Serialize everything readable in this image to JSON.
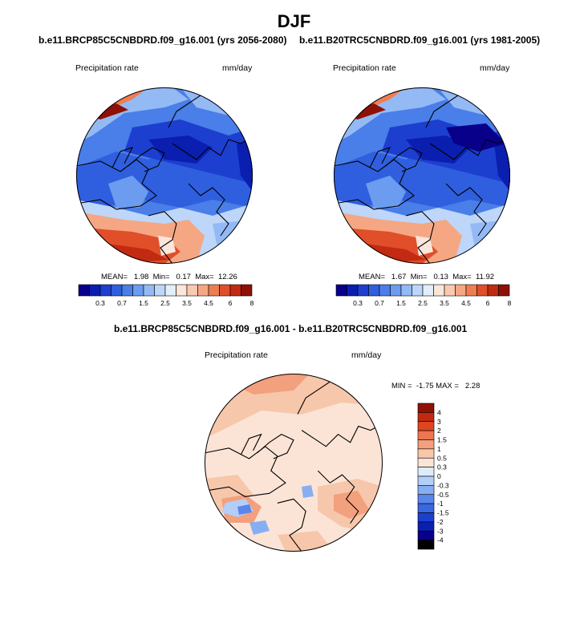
{
  "title": "DJF",
  "colors": {
    "bluescale": [
      "#08008a",
      "#0a1fb0",
      "#1c3fd0",
      "#2f5fde",
      "#4a7ee8",
      "#6c9cef",
      "#94baf5",
      "#bdd6f9",
      "#e3eefb",
      "#fbe6da",
      "#f8c9b0",
      "#f5a783",
      "#ef7d52",
      "#e04f2a",
      "#c22a12",
      "#8f1004"
    ],
    "diffscale": [
      "#08008a",
      "#0a1fb0",
      "#1c3fd0",
      "#3a66e0",
      "#5a86ea",
      "#86aef3",
      "#b3cef8",
      "#deebfb",
      "#fbe4d6",
      "#f7c7ab",
      "#f2a07d",
      "#ec7650",
      "#e0451f",
      "#c12a10",
      "#8f1004"
    ],
    "coast": "#000000"
  },
  "panels": [
    {
      "title": "b.e11.BRCP85C5CNBDRD.f09_g16.001 (yrs 2056-2080)",
      "left_label": "Precipitation rate",
      "right_label": "mm/day",
      "stats": "MEAN=   1.98  Min=   0.17  Max=  12.26",
      "chart_data": {
        "type": "heatmap",
        "projection": "north-polar-stereographic",
        "variable": "Precipitation rate",
        "units": "mm/day",
        "mean": 1.98,
        "min": 0.17,
        "max": 12.26,
        "colorbar_levels": [
          0.2,
          0.3,
          0.5,
          0.7,
          1,
          1.5,
          2,
          2.5,
          3,
          3.5,
          4,
          4.5,
          5,
          6,
          7,
          8
        ],
        "colorbar_tick_labels": [
          "0.3",
          "0.7",
          "1.5",
          "2.5",
          "3.5",
          "4.5",
          "6",
          "8"
        ]
      }
    },
    {
      "title": "b.e11.B20TRC5CNBDRD.f09_g16.001 (yrs 1981-2005)",
      "left_label": "Precipitation rate",
      "right_label": "mm/day",
      "stats": "MEAN=   1.67  Min=   0.13  Max=  11.92",
      "chart_data": {
        "type": "heatmap",
        "projection": "north-polar-stereographic",
        "variable": "Precipitation rate",
        "units": "mm/day",
        "mean": 1.67,
        "min": 0.13,
        "max": 11.92,
        "colorbar_levels": [
          0.2,
          0.3,
          0.5,
          0.7,
          1,
          1.5,
          2,
          2.5,
          3,
          3.5,
          4,
          4.5,
          5,
          6,
          7,
          8
        ],
        "colorbar_tick_labels": [
          "0.3",
          "0.7",
          "1.5",
          "2.5",
          "3.5",
          "4.5",
          "6",
          "8"
        ]
      }
    },
    {
      "title": "b.e11.BRCP85C5CNBDRD.f09_g16.001 - b.e11.B20TRC5CNBDRD.f09_g16.001",
      "left_label": "Precipitation rate",
      "right_label": "mm/day",
      "stats": "MIN =  -1.75 MAX =   2.28",
      "chart_data": {
        "type": "heatmap",
        "projection": "north-polar-stereographic",
        "variable": "Precipitation rate difference",
        "units": "mm/day",
        "min": -1.75,
        "max": 2.28,
        "colorbar_levels": [
          4,
          3,
          2,
          1.5,
          1,
          0.5,
          0.3,
          0,
          -0.3,
          -0.5,
          -1,
          -1.5,
          -2,
          -3,
          -4
        ],
        "colorbar_tick_labels": [
          "4",
          "3",
          "2",
          "1.5",
          "1",
          "0.5",
          "0.3",
          "0",
          "-0.3",
          "-0.5",
          "-1",
          "-1.5",
          "-2",
          "-3",
          "-4"
        ]
      }
    }
  ]
}
